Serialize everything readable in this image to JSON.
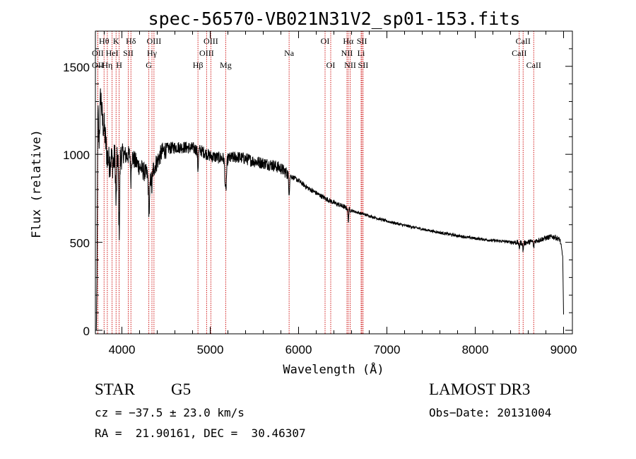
{
  "chart_data": {
    "type": "line",
    "title": "spec-56570-VB021N31V2_sp01-153.fits",
    "xlabel": "Wavelength (Å)",
    "ylabel": "Flux (relative)",
    "xlim": [
      3700,
      9100
    ],
    "ylim": [
      -20,
      1700
    ],
    "xticks": [
      4000,
      5000,
      6000,
      7000,
      8000,
      9000
    ],
    "xtick_labels": [
      "4000",
      "5000",
      "6000",
      "7000",
      "8000",
      "9000"
    ],
    "yticks": [
      0,
      500,
      1000,
      1500
    ],
    "ytick_labels": [
      "0",
      "500",
      "1000",
      "1500"
    ],
    "continuum": [
      [
        3710,
        0
      ],
      [
        3718,
        300
      ],
      [
        3728,
        1280
      ],
      [
        3740,
        1050
      ],
      [
        3760,
        1350
      ],
      [
        3780,
        1180
      ],
      [
        3800,
        1150
      ],
      [
        3830,
        1000
      ],
      [
        3860,
        950
      ],
      [
        3880,
        980
      ],
      [
        3900,
        940
      ],
      [
        3930,
        1020
      ],
      [
        3970,
        960
      ],
      [
        4000,
        1010
      ],
      [
        4050,
        990
      ],
      [
        4100,
        1000
      ],
      [
        4150,
        960
      ],
      [
        4200,
        930
      ],
      [
        4250,
        900
      ],
      [
        4300,
        880
      ],
      [
        4330,
        870
      ],
      [
        4360,
        920
      ],
      [
        4400,
        960
      ],
      [
        4450,
        1010
      ],
      [
        4500,
        1030
      ],
      [
        4600,
        1040
      ],
      [
        4700,
        1040
      ],
      [
        4800,
        1035
      ],
      [
        4900,
        1020
      ],
      [
        5000,
        990
      ],
      [
        5100,
        980
      ],
      [
        5200,
        975
      ],
      [
        5300,
        985
      ],
      [
        5400,
        975
      ],
      [
        5500,
        960
      ],
      [
        5600,
        950
      ],
      [
        5700,
        940
      ],
      [
        5800,
        920
      ],
      [
        5900,
        880
      ],
      [
        6000,
        850
      ],
      [
        6100,
        810
      ],
      [
        6200,
        780
      ],
      [
        6300,
        750
      ],
      [
        6400,
        725
      ],
      [
        6500,
        705
      ],
      [
        6600,
        680
      ],
      [
        6700,
        665
      ],
      [
        6800,
        650
      ],
      [
        6900,
        635
      ],
      [
        7000,
        620
      ],
      [
        7100,
        608
      ],
      [
        7200,
        596
      ],
      [
        7400,
        575
      ],
      [
        7600,
        555
      ],
      [
        7800,
        537
      ],
      [
        8000,
        522
      ],
      [
        8200,
        510
      ],
      [
        8400,
        502
      ],
      [
        8550,
        496
      ],
      [
        8700,
        510
      ],
      [
        8800,
        525
      ],
      [
        8870,
        532
      ],
      [
        8900,
        530
      ],
      [
        8960,
        515
      ],
      [
        8990,
        420
      ],
      [
        9000,
        90
      ]
    ],
    "absorption_dips": [
      {
        "center": 3934,
        "depth": 300,
        "width": 8
      },
      {
        "center": 3969,
        "depth": 380,
        "width": 8
      },
      {
        "center": 4102,
        "depth": 140,
        "width": 6
      },
      {
        "center": 4308,
        "depth": 200,
        "width": 10
      },
      {
        "center": 4340,
        "depth": 90,
        "width": 6
      },
      {
        "center": 4861,
        "depth": 110,
        "width": 7
      },
      {
        "center": 5175,
        "depth": 190,
        "width": 12
      },
      {
        "center": 5893,
        "depth": 90,
        "width": 8
      },
      {
        "center": 6563,
        "depth": 70,
        "width": 6
      },
      {
        "center": 8498,
        "depth": 35,
        "width": 6
      },
      {
        "center": 8542,
        "depth": 45,
        "width": 6
      },
      {
        "center": 8662,
        "depth": 40,
        "width": 6
      }
    ],
    "spectral_lines": [
      {
        "label": "OII",
        "wavelength": 3727,
        "row": 3
      },
      {
        "label": "Hθ",
        "wavelength": 3798,
        "row": 1
      },
      {
        "label": "OII",
        "wavelength": 3727,
        "row": 2
      },
      {
        "label": "Hη",
        "wavelength": 3835,
        "row": 3
      },
      {
        "label": "HeI",
        "wavelength": 3889,
        "row": 2
      },
      {
        "label": "K",
        "wavelength": 3934,
        "row": 1
      },
      {
        "label": "H",
        "wavelength": 3969,
        "row": 3
      },
      {
        "label": "SII",
        "wavelength": 4072,
        "row": 2
      },
      {
        "label": "Hδ",
        "wavelength": 4102,
        "row": 1
      },
      {
        "label": "G",
        "wavelength": 4305,
        "row": 3
      },
      {
        "label": "Hγ",
        "wavelength": 4340,
        "row": 2
      },
      {
        "label": "OIII",
        "wavelength": 4363,
        "row": 1
      },
      {
        "label": "Hβ",
        "wavelength": 4861,
        "row": 3
      },
      {
        "label": "OIII",
        "wavelength": 4959,
        "row": 2
      },
      {
        "label": "OIII",
        "wavelength": 5007,
        "row": 1
      },
      {
        "label": "Mg",
        "wavelength": 5175,
        "row": 3
      },
      {
        "label": "Na",
        "wavelength": 5893,
        "row": 2
      },
      {
        "label": "OI",
        "wavelength": 6300,
        "row": 1
      },
      {
        "label": "OI",
        "wavelength": 6364,
        "row": 3
      },
      {
        "label": "NII",
        "wavelength": 6548,
        "row": 2
      },
      {
        "label": "Hα",
        "wavelength": 6563,
        "row": 1
      },
      {
        "label": "NII",
        "wavelength": 6584,
        "row": 3
      },
      {
        "label": "SII",
        "wavelength": 6717,
        "row": 1
      },
      {
        "label": "Li",
        "wavelength": 6708,
        "row": 2
      },
      {
        "label": "SII",
        "wavelength": 6731,
        "row": 3
      },
      {
        "label": "CaII",
        "wavelength": 8498,
        "row": 2
      },
      {
        "label": "CaII",
        "wavelength": 8542,
        "row": 1
      },
      {
        "label": "CaII",
        "wavelength": 8662,
        "row": 3
      }
    ]
  },
  "footer": {
    "object_class": "STAR",
    "subclass": "G5",
    "survey": "LAMOST DR3",
    "redshift_text": "cz = −37.5 ± 23.0 km/s",
    "obs_date": "Obs−Date: 20131004",
    "coords": "RA =  21.90161, DEC =  30.46307"
  },
  "colors": {
    "spectrum": "#000000",
    "line_markers": "#cc0000",
    "axes": "#000000"
  }
}
